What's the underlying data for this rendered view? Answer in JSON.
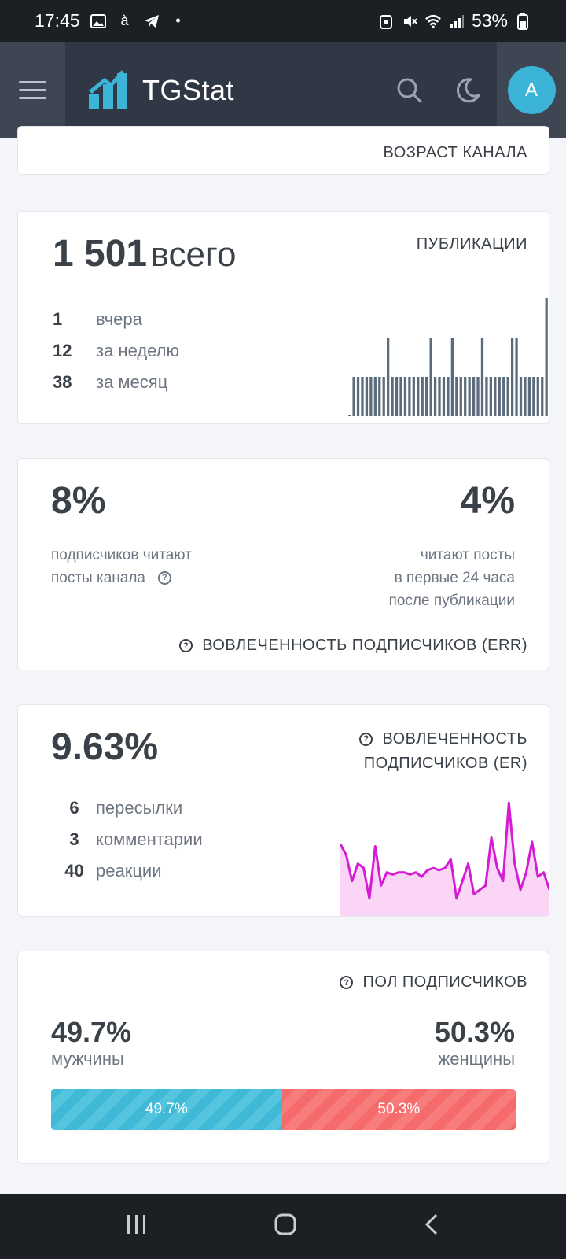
{
  "status_bar": {
    "time": "17:45",
    "battery": "53%",
    "icons": [
      "gallery-icon",
      "a-accent-icon",
      "telegram-icon",
      "dot-icon",
      "recycle-icon",
      "mute-icon",
      "wifi-icon",
      "signal-icon",
      "battery-icon"
    ]
  },
  "navbar": {
    "brand": "TGStat",
    "avatar_letter": "A",
    "colors": {
      "background": "#313845",
      "accent": "#3cb4d8"
    }
  },
  "age_card": {
    "title": "ВОЗРАСТ КАНАЛА"
  },
  "publications": {
    "title": "ПУБЛИКАЦИИ",
    "total_value": "1 501",
    "total_label": "всего",
    "rows": [
      {
        "num": "1",
        "label": "вчера"
      },
      {
        "num": "12",
        "label": "за неделю"
      },
      {
        "num": "38",
        "label": "за месяц"
      }
    ]
  },
  "err": {
    "title": "ВОВЛЕЧЕННОСТЬ ПОДПИСЧИКОВ (ERR)",
    "left_value": "8%",
    "left_label_1": "подписчиков читают",
    "left_label_2": "посты канала",
    "right_value": "4%",
    "right_label_1": "читают посты",
    "right_label_2": "в первые 24 часа",
    "right_label_3": "после публикации"
  },
  "er": {
    "title_1": "ВОВЛЕЧЕННОСТЬ",
    "title_2": "ПОДПИСЧИКОВ (ER)",
    "value": "9.63%",
    "rows": [
      {
        "num": "6",
        "label": "пересылки"
      },
      {
        "num": "3",
        "label": "комментарии"
      },
      {
        "num": "40",
        "label": "реакции"
      }
    ]
  },
  "gender": {
    "title": "ПОЛ ПОДПИСЧИКОВ",
    "male_value": "49.7%",
    "male_label": "мужчины",
    "female_value": "50.3%",
    "female_label": "женщины",
    "male_share": 49.7,
    "female_share": 50.3,
    "colors": {
      "male": "#3fb9d6",
      "female": "#f56a6a"
    }
  },
  "chart_data": [
    {
      "type": "bar",
      "title": "",
      "values": [
        0,
        1,
        1,
        1,
        1,
        1,
        1,
        1,
        1,
        2,
        1,
        1,
        1,
        1,
        1,
        1,
        1,
        1,
        1,
        2,
        1,
        1,
        1,
        1,
        2,
        1,
        1,
        1,
        1,
        1,
        1,
        2,
        1,
        1,
        1,
        1,
        1,
        1,
        2,
        2,
        1,
        1,
        1,
        1,
        1,
        1,
        3
      ],
      "ylim": [
        0,
        3
      ]
    },
    {
      "type": "area",
      "title": "",
      "values": [
        16.5,
        14,
        8,
        12,
        11,
        4,
        16,
        7,
        10,
        9.5,
        10,
        10,
        9.5,
        10,
        9,
        10.5,
        11,
        10.5,
        11,
        13,
        4,
        8,
        12,
        5,
        6,
        7,
        18,
        11,
        8,
        26,
        12,
        6,
        10,
        17,
        9,
        10,
        6
      ],
      "ylim": [
        0,
        30
      ],
      "colors": {
        "line": "#d41cd4",
        "fill": "#fbd5f5"
      }
    }
  ]
}
